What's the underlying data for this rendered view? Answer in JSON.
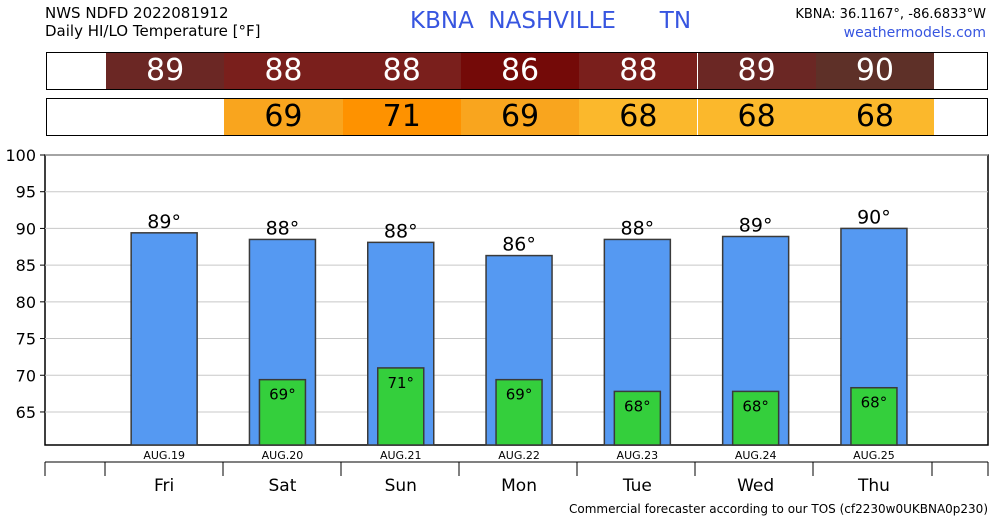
{
  "header": {
    "line1": "NWS NDFD 2022081912",
    "line2": "Daily HI/LO Temperature [°F]",
    "title": "KBNA  NASHVILLE      TN",
    "coords": "KBNA: 36.1167°, -86.6833°W",
    "site": "weathermodels.com"
  },
  "hi_strip": {
    "values": [
      "89",
      "88",
      "88",
      "86",
      "88",
      "89",
      "90"
    ],
    "colors": [
      "#6b2724",
      "#7a1f1c",
      "#7a1f1c",
      "#740a08",
      "#7a1f1c",
      "#6b2724",
      "#5e3028"
    ]
  },
  "lo_strip": {
    "values": [
      "69",
      "71",
      "69",
      "68",
      "68",
      "68"
    ],
    "colors": [
      "#f9a51e",
      "#fe9200",
      "#f9a51e",
      "#fbb82c",
      "#fbb82c",
      "#fbb82c"
    ]
  },
  "chart_data": {
    "type": "bar",
    "categories": [
      "Fri",
      "Sat",
      "Sun",
      "Mon",
      "Tue",
      "Wed",
      "Thu"
    ],
    "dates": [
      "AUG.19",
      "AUG.20",
      "AUG.21",
      "AUG.22",
      "AUG.23",
      "AUG.24",
      "AUG.25"
    ],
    "series": [
      {
        "name": "",
        "color": "#5599f2",
        "values": [
          89.4,
          88.5,
          88.1,
          86.3,
          88.5,
          88.9,
          90.0
        ],
        "labels": [
          "89°",
          "88°",
          "88°",
          "86°",
          "88°",
          "89°",
          "90°"
        ]
      },
      {
        "name": "",
        "color": "#34cf3c",
        "values": [
          null,
          69.4,
          71.0,
          69.4,
          67.8,
          67.8,
          68.3
        ],
        "labels": [
          "",
          "69°",
          "71°",
          "69°",
          "68°",
          "68°",
          "68°"
        ]
      }
    ],
    "ylim": [
      60.5,
      100
    ],
    "yticks": [
      "100",
      "95",
      "90",
      "85",
      "80",
      "75",
      "70",
      "65"
    ],
    "grid": true
  },
  "footer": "Commercial forecaster according to our TOS (cf2230w0UKBNA0p230)"
}
